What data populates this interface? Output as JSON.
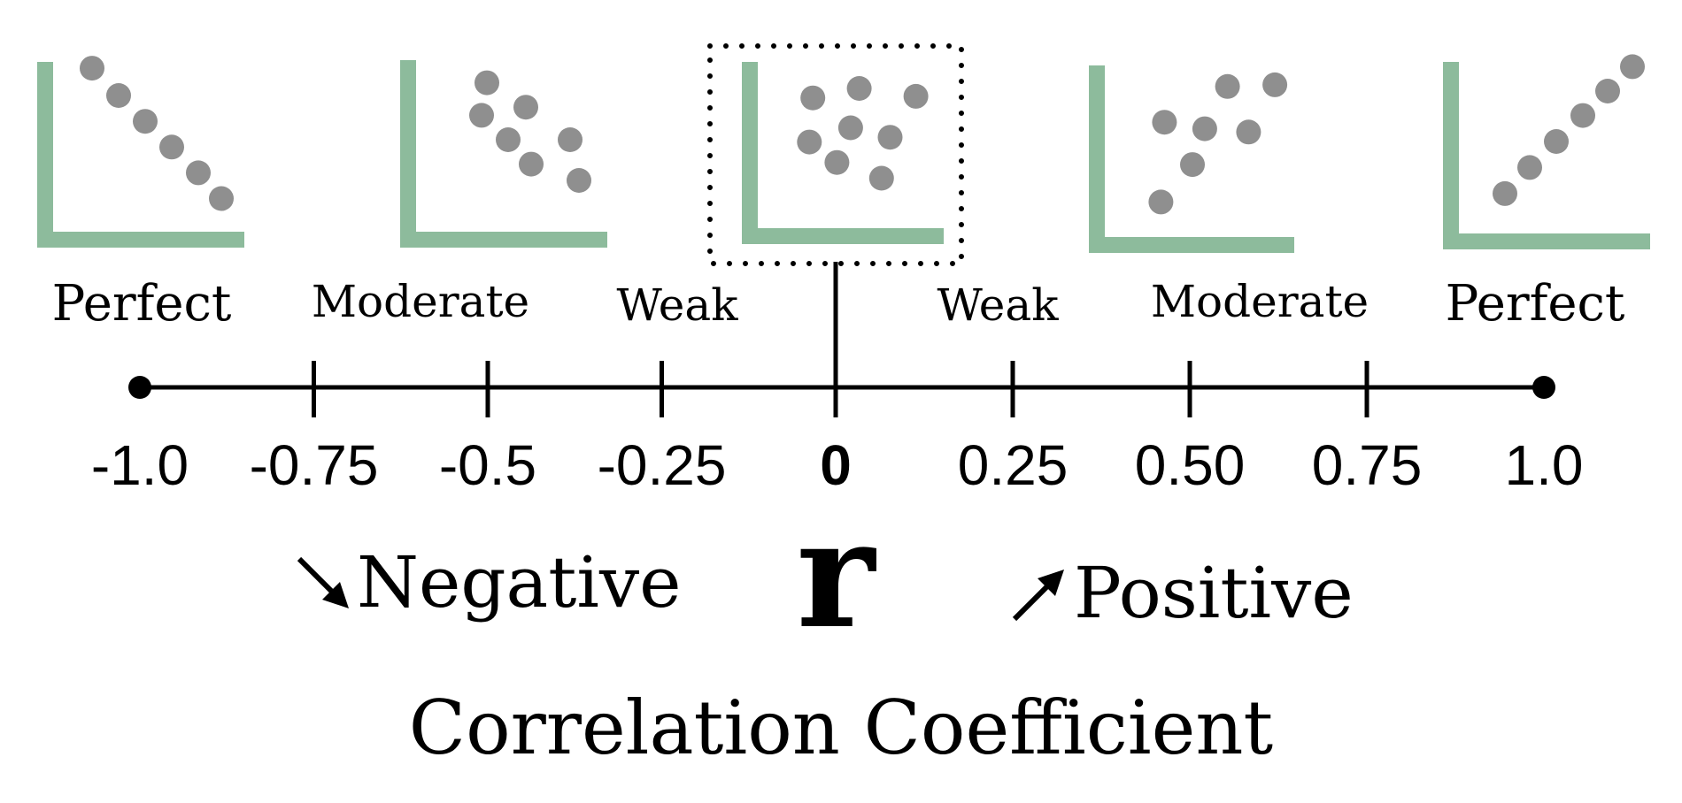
{
  "colors": {
    "axis_green": "#8dbb9c",
    "dot_gray": "#8f8f8f",
    "ink": "#000000"
  },
  "panels": [
    {
      "id": "perfect-negative",
      "label": "Perfect",
      "points": [
        [
          0.2,
          0.95
        ],
        [
          0.35,
          0.78
        ],
        [
          0.5,
          0.62
        ],
        [
          0.65,
          0.46
        ],
        [
          0.8,
          0.3
        ],
        [
          0.93,
          0.14
        ]
      ]
    },
    {
      "id": "moderate-negative",
      "label": "Moderate",
      "points": [
        [
          0.38,
          0.85
        ],
        [
          0.35,
          0.65
        ],
        [
          0.6,
          0.7
        ],
        [
          0.5,
          0.5
        ],
        [
          0.63,
          0.35
        ],
        [
          0.85,
          0.5
        ],
        [
          0.9,
          0.25
        ]
      ]
    },
    {
      "id": "weak-zero",
      "label": "Weak",
      "points": [
        [
          0.3,
          0.76
        ],
        [
          0.57,
          0.82
        ],
        [
          0.9,
          0.77
        ],
        [
          0.52,
          0.57
        ],
        [
          0.28,
          0.48
        ],
        [
          0.75,
          0.51
        ],
        [
          0.44,
          0.35
        ],
        [
          0.7,
          0.25
        ]
      ]
    },
    {
      "id": "moderate-positive",
      "label": "Moderate",
      "points": [
        [
          0.3,
          0.15
        ],
        [
          0.48,
          0.38
        ],
        [
          0.32,
          0.64
        ],
        [
          0.55,
          0.6
        ],
        [
          0.8,
          0.58
        ],
        [
          0.68,
          0.86
        ],
        [
          0.95,
          0.87
        ]
      ]
    },
    {
      "id": "perfect-positive",
      "label": "Perfect",
      "points": [
        [
          0.24,
          0.18
        ],
        [
          0.38,
          0.34
        ],
        [
          0.53,
          0.5
        ],
        [
          0.68,
          0.66
        ],
        [
          0.82,
          0.81
        ],
        [
          0.96,
          0.96
        ]
      ]
    }
  ],
  "scale": {
    "min": -1.0,
    "max": 1.0,
    "ticks": [
      {
        "value": -1.0,
        "label": "-1.0"
      },
      {
        "value": -0.75,
        "label": "-0.75"
      },
      {
        "value": -0.5,
        "label": "-0.5"
      },
      {
        "value": -0.25,
        "label": "-0.25"
      },
      {
        "value": 0,
        "label": "0"
      },
      {
        "value": 0.25,
        "label": "0.25"
      },
      {
        "value": 0.5,
        "label": "0.50"
      },
      {
        "value": 0.75,
        "label": "0.75"
      },
      {
        "value": 1.0,
        "label": "1.0"
      }
    ]
  },
  "direction": {
    "negative_label": "Negative",
    "positive_label": "Positive",
    "symbol": "r"
  },
  "title": "Correlation Coefficient"
}
